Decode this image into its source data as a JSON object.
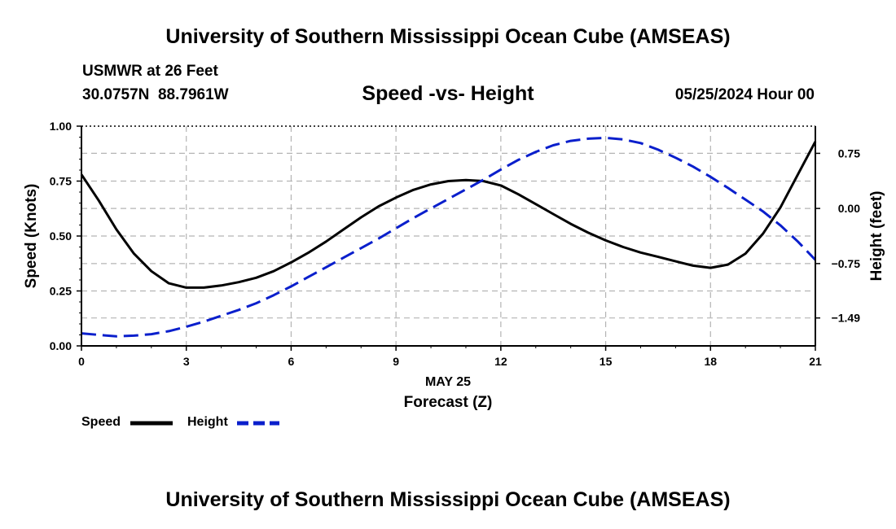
{
  "page": {
    "title_top": "University of Southern Mississippi Ocean Cube (AMSEAS)",
    "title_bottom": "University of Southern Mississippi Ocean Cube (AMSEAS)",
    "station": "USMWR at 26 Feet",
    "coords": "30.0757N  88.7961W",
    "datetime": "05/25/2024 Hour 00"
  },
  "legend": {
    "speed_label": "Speed",
    "height_label": "Height"
  },
  "colors": {
    "speed": "#000000",
    "height": "#0a1fcc",
    "grid": "#b4b4b4"
  },
  "chart_data": {
    "type": "line",
    "title": "Speed -vs- Height",
    "xlabel": "Forecast (Z)",
    "x_sublabel": "MAY 25",
    "ylabel": "Speed (Knots)",
    "y2label": "Height (feet)",
    "xlim": [
      0,
      21
    ],
    "ylim": [
      0,
      1.0
    ],
    "y2lim": [
      -1.87,
      1.12
    ],
    "x_ticks": [
      0,
      3,
      6,
      9,
      12,
      15,
      18,
      21
    ],
    "x_tick_labels": [
      "0",
      "3",
      "6",
      "9",
      "12",
      "15",
      "18",
      "21"
    ],
    "y_ticks": [
      0,
      0.25,
      0.5,
      0.75,
      1.0
    ],
    "y_tick_labels": [
      "0.00",
      "0.25",
      "0.50",
      "0.75",
      "1.00"
    ],
    "y2_ticks": [
      0.75,
      0.0,
      -0.75,
      -1.49
    ],
    "y2_tick_labels": [
      "0.75",
      "0.00",
      "−0.75",
      "−1.49"
    ],
    "grid": true,
    "legend_position": "bottom-left",
    "series": [
      {
        "name": "Speed",
        "axis": "left",
        "style": "solid",
        "x": [
          0,
          0.5,
          1,
          1.5,
          2,
          2.5,
          3,
          3.5,
          4,
          4.5,
          5,
          5.5,
          6,
          6.5,
          7,
          7.5,
          8,
          8.5,
          9,
          9.5,
          10,
          10.5,
          11,
          11.5,
          12,
          12.5,
          13,
          13.5,
          14,
          14.5,
          15,
          15.5,
          16,
          16.5,
          17,
          17.5,
          18,
          18.5,
          19,
          19.5,
          20,
          20.5,
          21
        ],
        "values": [
          0.78,
          0.66,
          0.53,
          0.42,
          0.34,
          0.285,
          0.265,
          0.265,
          0.275,
          0.29,
          0.31,
          0.34,
          0.38,
          0.425,
          0.475,
          0.53,
          0.585,
          0.635,
          0.675,
          0.71,
          0.735,
          0.75,
          0.755,
          0.75,
          0.73,
          0.69,
          0.645,
          0.6,
          0.555,
          0.515,
          0.48,
          0.45,
          0.425,
          0.405,
          0.385,
          0.365,
          0.355,
          0.37,
          0.42,
          0.51,
          0.63,
          0.78,
          0.93
        ]
      },
      {
        "name": "Height",
        "axis": "right",
        "style": "dashed",
        "x": [
          0,
          0.5,
          1,
          1.5,
          2,
          2.5,
          3,
          3.5,
          4,
          4.5,
          5,
          5.5,
          6,
          6.5,
          7,
          7.5,
          8,
          8.5,
          9,
          9.5,
          10,
          10.5,
          11,
          11.5,
          12,
          12.5,
          13,
          13.5,
          14,
          14.5,
          15,
          15.5,
          16,
          16.5,
          17,
          17.5,
          18,
          18.5,
          19,
          19.5,
          20,
          20.5,
          21
        ],
        "values": [
          -1.7,
          -1.72,
          -1.74,
          -1.73,
          -1.71,
          -1.67,
          -1.61,
          -1.54,
          -1.46,
          -1.38,
          -1.29,
          -1.18,
          -1.06,
          -0.93,
          -0.8,
          -0.67,
          -0.54,
          -0.41,
          -0.27,
          -0.13,
          0.0,
          0.13,
          0.26,
          0.39,
          0.53,
          0.66,
          0.77,
          0.86,
          0.92,
          0.95,
          0.96,
          0.94,
          0.89,
          0.8,
          0.69,
          0.57,
          0.43,
          0.28,
          0.12,
          -0.04,
          -0.23,
          -0.45,
          -0.7
        ]
      }
    ]
  }
}
